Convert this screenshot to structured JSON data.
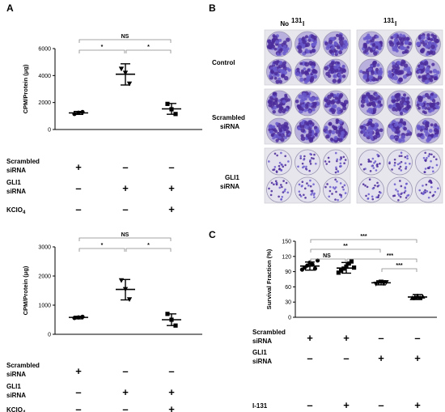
{
  "panels": {
    "a": "A",
    "b": "B",
    "c": "C"
  },
  "chart_data": [
    {
      "type": "scatter",
      "panel": "A",
      "ylabel": "CPM/Protein (μg)",
      "ylim": [
        0,
        6000
      ],
      "yticks": [
        "0",
        "2000",
        "4000",
        "6000"
      ],
      "groups": [
        {
          "points": [
            1150,
            1250,
            1300
          ],
          "mean": 1230,
          "sd_low": 1120,
          "sd_high": 1340
        },
        {
          "points": [
            4500,
            4200,
            3400
          ],
          "mean": 4100,
          "sd_low": 3300,
          "sd_high": 4870
        },
        {
          "points": [
            1900,
            1500,
            1150
          ],
          "mean": 1530,
          "sd_low": 1130,
          "sd_high": 1930
        }
      ],
      "significance": [
        {
          "from": 0,
          "to": 2,
          "label": "NS"
        },
        {
          "from": 0,
          "to": 1,
          "label": "*"
        },
        {
          "from": 1,
          "to": 2,
          "label": "*"
        }
      ],
      "conditions": [
        {
          "label_line1": "Scrambled",
          "label_line2": "siRNA",
          "signs": [
            "+",
            "-",
            "-"
          ]
        },
        {
          "label_line1": "GLI1",
          "label_line2": "siRNA",
          "signs": [
            "-",
            "+",
            "+"
          ]
        },
        {
          "label_line1": "KClO",
          "label_sub": "4",
          "signs": [
            "-",
            "-",
            "+"
          ]
        }
      ]
    },
    {
      "type": "scatter",
      "panel": "A",
      "ylabel": "CPM/Protein (μg)",
      "ylim": [
        0,
        3000
      ],
      "yticks": [
        "0",
        "1000",
        "2000",
        "3000"
      ],
      "groups": [
        {
          "points": [
            560,
            580,
            600
          ],
          "mean": 580,
          "sd_low": 530,
          "sd_high": 620
        },
        {
          "points": [
            1850,
            1550,
            1200
          ],
          "mean": 1540,
          "sd_low": 1180,
          "sd_high": 1880
        },
        {
          "points": [
            700,
            500,
            300
          ],
          "mean": 500,
          "sd_low": 300,
          "sd_high": 700
        }
      ],
      "significance": [
        {
          "from": 0,
          "to": 2,
          "label": "NS"
        },
        {
          "from": 0,
          "to": 1,
          "label": "*"
        },
        {
          "from": 1,
          "to": 2,
          "label": "*"
        }
      ],
      "conditions": [
        {
          "label_line1": "Scrambled",
          "label_line2": "siRNA",
          "signs": [
            "+",
            "-",
            "-"
          ]
        },
        {
          "label_line1": "GLI1",
          "label_line2": "siRNA",
          "signs": [
            "-",
            "+",
            "+"
          ]
        },
        {
          "label_line1": "KClO",
          "label_sub": "4",
          "signs": [
            "-",
            "-",
            "+"
          ]
        }
      ]
    },
    {
      "type": "scatter",
      "panel": "C",
      "ylabel": "Survival Fraction (%)",
      "ylim": [
        0,
        150
      ],
      "yticks": [
        "0",
        "30",
        "60",
        "90",
        "120",
        "150"
      ],
      "groups": [
        {
          "points": [
            94,
            98,
            102,
            108,
            104,
            96,
            112
          ],
          "mean": 101,
          "sd_low": 93,
          "sd_high": 109
        },
        {
          "points": [
            88,
            92,
            96,
            100,
            106,
            110,
            98
          ],
          "mean": 97,
          "sd_low": 87,
          "sd_high": 108
        },
        {
          "points": [
            66,
            68,
            70,
            67,
            69
          ],
          "mean": 68,
          "sd_low": 64,
          "sd_high": 72
        },
        {
          "points": [
            38,
            40,
            42,
            39,
            41
          ],
          "mean": 40,
          "sd_low": 35,
          "sd_high": 45
        }
      ],
      "significance": [
        {
          "from": 0,
          "to": 3,
          "label": "***"
        },
        {
          "from": 0,
          "to": 2,
          "label": "**"
        },
        {
          "from": 0,
          "to": 1,
          "label": "NS"
        },
        {
          "from": 1,
          "to": 3,
          "label": "***"
        },
        {
          "from": 2,
          "to": 3,
          "label": "***"
        }
      ],
      "conditions": [
        {
          "label_line1": "Scrambled",
          "label_line2": "siRNA",
          "signs": [
            "+",
            "+",
            "-",
            "-"
          ]
        },
        {
          "label_line1": "GLI1",
          "label_line2": "siRNA",
          "signs": [
            "-",
            "-",
            "+",
            "+"
          ]
        },
        {
          "label_line1": "I-131",
          "signs": [
            "-",
            "+",
            "-",
            "+"
          ]
        }
      ]
    }
  ],
  "colony_panel": {
    "columns": [
      "No ",
      "I"
    ],
    "column_sup": "131",
    "rows": [
      {
        "label_line1": "Control",
        "label_line2": ""
      },
      {
        "label_line1": "Scrambled",
        "label_line2": "siRNA"
      },
      {
        "label_line1": "GLI1",
        "label_line2": "siRNA"
      }
    ],
    "dish_color": "#6a5acd",
    "colony_color": "#4b2c9a"
  }
}
